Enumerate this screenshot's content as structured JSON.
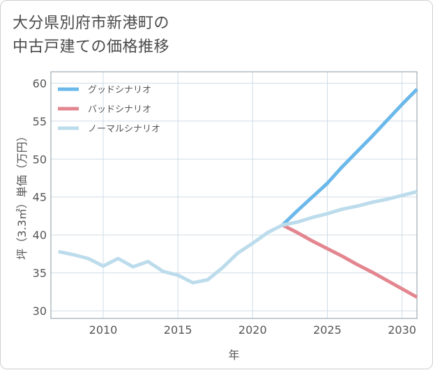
{
  "chart_data": {
    "type": "line",
    "title": "大分県別府市新港町の\n中古戸建ての価格推移",
    "xlabel": "年",
    "ylabel": "坪（3.3㎡）単価（万円）",
    "xlim": [
      2006.5,
      2031
    ],
    "ylim": [
      29,
      61.5
    ],
    "xticks": [
      2010,
      2015,
      2020,
      2025,
      2030
    ],
    "yticks": [
      30,
      35,
      40,
      45,
      50,
      55,
      60
    ],
    "grid": true,
    "legend_position": "top-left",
    "colors": {
      "good": "#6bb8ea",
      "bad": "#e3868f",
      "normal": "#bcdcec",
      "grid": "#d0dde7",
      "frame": "#8a9aa6"
    },
    "series": [
      {
        "name": "グッドシナリオ",
        "color_key": "good",
        "x": [
          2022,
          2023,
          2024,
          2025,
          2026,
          2027,
          2028,
          2029,
          2030,
          2031
        ],
        "y": [
          41.3,
          43.2,
          45.0,
          46.8,
          49.0,
          51.0,
          53.0,
          55.1,
          57.2,
          59.2
        ]
      },
      {
        "name": "バッドシナリオ",
        "color_key": "bad",
        "x": [
          2022,
          2023,
          2024,
          2025,
          2026,
          2027,
          2028,
          2029,
          2030,
          2031
        ],
        "y": [
          41.3,
          40.3,
          39.2,
          38.2,
          37.2,
          36.1,
          35.1,
          34.0,
          32.9,
          31.8
        ]
      },
      {
        "name": "ノーマルシナリオ",
        "color_key": "normal",
        "x": [
          2007,
          2008,
          2009,
          2010,
          2011,
          2012,
          2013,
          2014,
          2015,
          2016,
          2017,
          2018,
          2019,
          2020,
          2021,
          2022,
          2023,
          2024,
          2025,
          2026,
          2027,
          2028,
          2029,
          2030,
          2031
        ],
        "y": [
          37.8,
          37.4,
          36.9,
          35.9,
          36.9,
          35.8,
          36.5,
          35.2,
          34.7,
          33.7,
          34.1,
          35.7,
          37.6,
          38.9,
          40.3,
          41.3,
          41.7,
          42.3,
          42.8,
          43.4,
          43.8,
          44.3,
          44.7,
          45.2,
          45.7
        ]
      }
    ]
  }
}
